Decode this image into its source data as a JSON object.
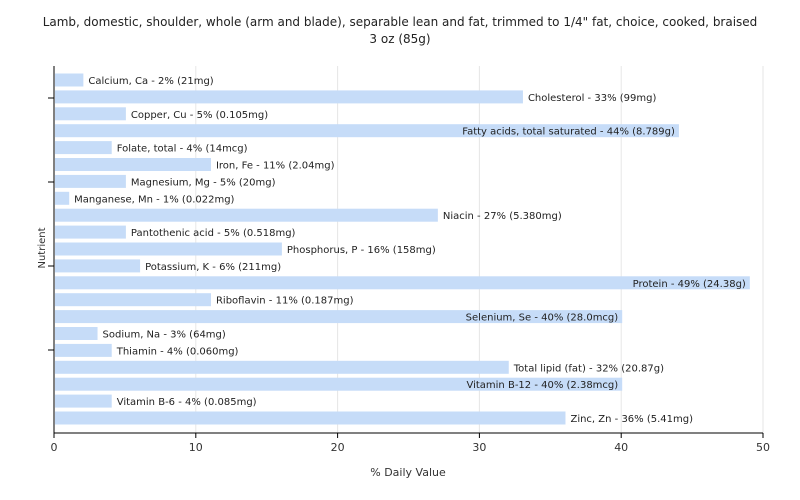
{
  "chart_data": {
    "type": "bar",
    "orientation": "horizontal",
    "title_lines": [
      "Lamb, domestic, shoulder, whole (arm and blade), separable lean and fat, trimmed to 1/4\" fat, choice, cooked, braised",
      "3 oz (85g)"
    ],
    "xlabel": "% Daily Value",
    "ylabel": "Nutrient",
    "xlim": [
      0,
      50
    ],
    "xticks": [
      "0",
      "10",
      "20",
      "30",
      "40",
      "50"
    ],
    "grid": "vertical",
    "bar_color": "#c6dcf8",
    "categories": [
      "Calcium, Ca",
      "Cholesterol",
      "Copper, Cu",
      "Fatty acids, total saturated",
      "Folate, total",
      "Iron, Fe",
      "Magnesium, Mg",
      "Manganese, Mn",
      "Niacin",
      "Pantothenic acid",
      "Phosphorus, P",
      "Potassium, K",
      "Protein",
      "Riboflavin",
      "Selenium, Se",
      "Sodium, Na",
      "Thiamin",
      "Total lipid (fat)",
      "Vitamin B-12",
      "Vitamin B-6",
      "Zinc, Zn"
    ],
    "values": [
      2,
      33,
      5,
      44,
      4,
      11,
      5,
      1,
      27,
      5,
      16,
      6,
      49,
      11,
      40,
      3,
      4,
      32,
      40,
      4,
      36
    ],
    "labels": [
      "Calcium, Ca - 2% (21mg)",
      "Cholesterol - 33% (99mg)",
      "Copper, Cu - 5% (0.105mg)",
      "Fatty acids, total saturated - 44% (8.789g)",
      "Folate, total - 4% (14mcg)",
      "Iron, Fe - 11% (2.04mg)",
      "Magnesium, Mg - 5% (20mg)",
      "Manganese, Mn - 1% (0.022mg)",
      "Niacin - 27% (5.380mg)",
      "Pantothenic acid - 5% (0.518mg)",
      "Phosphorus, P - 16% (158mg)",
      "Potassium, K - 6% (211mg)",
      "Protein - 49% (24.38g)",
      "Riboflavin - 11% (0.187mg)",
      "Selenium, Se - 40% (28.0mcg)",
      "Sodium, Na - 3% (64mg)",
      "Thiamin - 4% (0.060mg)",
      "Total lipid (fat) - 32% (20.87g)",
      "Vitamin B-12 - 40% (2.38mcg)",
      "Vitamin B-6 - 4% (0.085mg)",
      "Zinc, Zn - 36% (5.41mg)"
    ]
  }
}
